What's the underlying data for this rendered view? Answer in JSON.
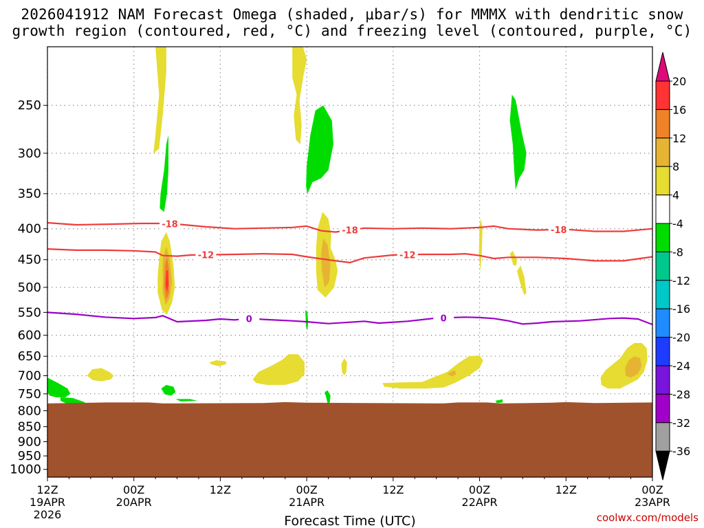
{
  "title_line1": "2026041912 NAM Forecast Omega (shaded, μbar/s) for MMMX with dendritic snow",
  "title_line2": "growth region (contoured, red, °C) and freezing level (contoured, purple, °C)",
  "credit": "coolwx.com/models",
  "chart_data": {
    "type": "contour",
    "title": "2026041912 NAM Forecast Omega (shaded, μbar/s) for MMMX with dendritic snow growth region (contoured, red, °C) and freezing level (contoured, purple, °C)",
    "xlabel": "Forecast Time (UTC)",
    "ylabel": "",
    "x_ticks": [
      {
        "hour": 0,
        "line1": "12Z",
        "line2": "19APR",
        "line3": "2026"
      },
      {
        "hour": 12,
        "line1": "00Z",
        "line2": "20APR",
        "line3": ""
      },
      {
        "hour": 24,
        "line1": "12Z",
        "line2": "",
        "line3": ""
      },
      {
        "hour": 36,
        "line1": "00Z",
        "line2": "21APR",
        "line3": ""
      },
      {
        "hour": 48,
        "line1": "12Z",
        "line2": "",
        "line3": ""
      },
      {
        "hour": 60,
        "line1": "00Z",
        "line2": "22APR",
        "line3": ""
      },
      {
        "hour": 72,
        "line1": "12Z",
        "line2": "",
        "line3": ""
      },
      {
        "hour": 84,
        "line1": "00Z",
        "line2": "23APR",
        "line3": ""
      }
    ],
    "xlim": [
      0,
      84
    ],
    "y_scale": "log-pressure",
    "ylim_hpa": [
      1030,
      200
    ],
    "y_ticks": [
      250,
      300,
      350,
      400,
      450,
      500,
      550,
      600,
      650,
      700,
      750,
      800,
      850,
      900,
      950,
      1000
    ],
    "terrain_top_hpa": 775,
    "colorbar": {
      "labels": [
        "20",
        "16",
        "12",
        "8",
        "4",
        "-4",
        "-8",
        "-12",
        "-16",
        "-20",
        "-24",
        "-28",
        "-32",
        "-36"
      ],
      "colors": [
        "#ff3333",
        "#f08228",
        "#e6b432",
        "#e6dc32",
        "#ffffff",
        "#00dc00",
        "#00c88c",
        "#00c8c8",
        "#1e8cff",
        "#1e3cff",
        "#7814dc",
        "#a000c8",
        "#a0a0a0"
      ],
      "top_arrow_color": "#dc0a78",
      "bottom_arrow_color": "#000000"
    },
    "series": [
      {
        "name": "-18 °C isotherm",
        "color": "#ee3b3b",
        "label": "-18",
        "label_at_hours": [
          17,
          42,
          71
        ],
        "points": [
          [
            0,
            391
          ],
          [
            4,
            394
          ],
          [
            9,
            393
          ],
          [
            13,
            392
          ],
          [
            16,
            392
          ],
          [
            18,
            393
          ],
          [
            22,
            397
          ],
          [
            26,
            400
          ],
          [
            30,
            399
          ],
          [
            34,
            398
          ],
          [
            36,
            396
          ],
          [
            38,
            403
          ],
          [
            40,
            405
          ],
          [
            44,
            399
          ],
          [
            48,
            400
          ],
          [
            52,
            399
          ],
          [
            56,
            400
          ],
          [
            60,
            398
          ],
          [
            62,
            396
          ],
          [
            64,
            400
          ],
          [
            68,
            402
          ],
          [
            72,
            401
          ],
          [
            76,
            404
          ],
          [
            80,
            404
          ],
          [
            84,
            400
          ]
        ]
      },
      {
        "name": "-12 °C isotherm",
        "color": "#ee3b3b",
        "label": "-12",
        "label_at_hours": [
          22,
          50
        ],
        "points": [
          [
            0,
            432
          ],
          [
            4,
            434
          ],
          [
            8,
            434
          ],
          [
            12,
            435
          ],
          [
            15,
            437
          ],
          [
            16,
            443
          ],
          [
            18,
            444
          ],
          [
            20,
            442
          ],
          [
            26,
            441
          ],
          [
            30,
            440
          ],
          [
            34,
            441
          ],
          [
            36,
            445
          ],
          [
            40,
            452
          ],
          [
            42,
            455
          ],
          [
            44,
            447
          ],
          [
            48,
            442
          ],
          [
            52,
            441
          ],
          [
            56,
            441
          ],
          [
            58,
            440
          ],
          [
            60,
            443
          ],
          [
            62,
            448
          ],
          [
            64,
            446
          ],
          [
            68,
            446
          ],
          [
            72,
            448
          ],
          [
            76,
            452
          ],
          [
            80,
            452
          ],
          [
            84,
            445
          ]
        ]
      },
      {
        "name": "0 °C freezing level",
        "color": "#9c00c8",
        "label": "0",
        "label_at_hours": [
          28,
          55
        ],
        "points": [
          [
            0,
            550
          ],
          [
            4,
            554
          ],
          [
            8,
            560
          ],
          [
            12,
            563
          ],
          [
            15,
            561
          ],
          [
            16,
            557
          ],
          [
            18,
            570
          ],
          [
            22,
            567
          ],
          [
            24,
            564
          ],
          [
            26,
            566
          ],
          [
            28,
            563
          ],
          [
            30,
            565
          ],
          [
            34,
            568
          ],
          [
            36,
            570
          ],
          [
            39,
            574
          ],
          [
            42,
            571
          ],
          [
            44,
            569
          ],
          [
            46,
            573
          ],
          [
            50,
            569
          ],
          [
            54,
            562
          ],
          [
            58,
            560
          ],
          [
            60,
            561
          ],
          [
            62,
            563
          ],
          [
            64,
            568
          ],
          [
            66,
            575
          ],
          [
            68,
            573
          ],
          [
            70,
            570
          ],
          [
            74,
            568
          ],
          [
            78,
            563
          ],
          [
            80,
            562
          ],
          [
            82,
            564
          ],
          [
            84,
            576
          ]
        ]
      }
    ],
    "omega_features": [
      {
        "hour": 16.5,
        "p": 480,
        "max": 20,
        "desc": "upward motion core (red center)"
      },
      {
        "hour": 39.3,
        "p": 455,
        "max": 12,
        "desc": "upward motion (orange center)"
      },
      {
        "hour": 41.0,
        "p": 290,
        "min": -4,
        "desc": "downward motion (green)"
      },
      {
        "hour": 65.0,
        "p": 280,
        "min": -4,
        "desc": "downward motion (green)"
      },
      {
        "hour": 81.5,
        "p": 675,
        "max": 12,
        "desc": "upward motion (orange center)"
      }
    ]
  }
}
